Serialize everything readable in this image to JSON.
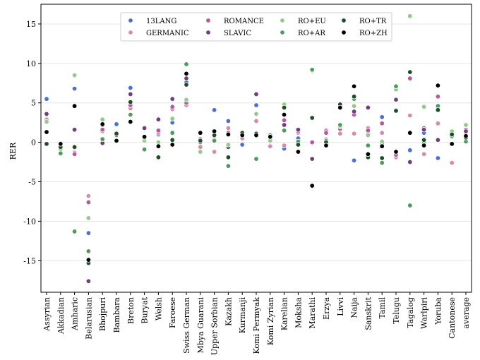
{
  "chart_data": {
    "type": "scatter",
    "title": "",
    "xlabel": "",
    "ylabel": "RER",
    "ylim": [
      -19,
      17.5
    ],
    "yticks": [
      -15,
      -10,
      -5,
      0,
      5,
      10,
      15
    ],
    "grid": "horizontal",
    "legend_position": "top-center",
    "categories": [
      "Assyrian",
      "Akkadian",
      "Amharic",
      "Belarusian",
      "Bhojpuri",
      "Bambara",
      "Breton",
      "Buryat",
      "Welsh",
      "Faroese",
      "Swiss German",
      "Mbya Guarani",
      "Upper Sorbian",
      "Kazakh",
      "Kurmanji",
      "Komi Permyak",
      "Komi Zyrian",
      "Karelian",
      "Moksha",
      "Marathi",
      "Erzya",
      "Livvi",
      "Naija",
      "Sanskrit",
      "Tamil",
      "Telugu",
      "Tagalog",
      "Warlpiri",
      "Yoruba",
      "Cantonese",
      "average"
    ],
    "series": [
      {
        "name": "13LANG",
        "color": "#4a6fd6",
        "values": [
          5.5,
          -0.1,
          6.8,
          -11.5,
          1.6,
          2.3,
          6.9,
          0.5,
          1.0,
          2.5,
          7.6,
          0.2,
          4.1,
          2.7,
          -0.3,
          4.7,
          0.4,
          -0.8,
          0.5,
          9.0,
          0.3,
          4.4,
          -2.3,
          1.1,
          3.2,
          6.9,
          -1.0,
          1.2,
          -2.0,
          0.8,
          1.5
        ]
      },
      {
        "name": "GERMANIC",
        "color": "#d98aa8",
        "values": [
          2.9,
          -0.4,
          -1.3,
          -6.8,
          1.4,
          1.0,
          4.3,
          0.4,
          1.2,
          4.2,
          4.7,
          -0.6,
          -1.2,
          1.8,
          0.5,
          2.7,
          -0.5,
          -0.4,
          1.2,
          -0.1,
          1.5,
          1.1,
          1.1,
          1.8,
          1.2,
          -1.9,
          3.4,
          -1.5,
          2.4,
          -2.6,
          1.2
        ]
      },
      {
        "name": "ROMANCE",
        "color": "#b5599a",
        "values": [
          3.5,
          -0.5,
          -1.5,
          -7.6,
          1.6,
          0.9,
          4.7,
          0.6,
          1.5,
          4.5,
          5.0,
          0.4,
          1.0,
          1.2,
          0.9,
          3.6,
          0.1,
          2.8,
          1.4,
          0.0,
          1.2,
          1.7,
          3.5,
          1.5,
          2.4,
          -1.6,
          8.1,
          1.8,
          5.8,
          0.7,
          1.6
        ]
      },
      {
        "name": "SLAVIC",
        "color": "#6e3f7d",
        "values": [
          3.6,
          -0.6,
          1.6,
          -17.6,
          -0.1,
          1.2,
          6.1,
          1.8,
          2.9,
          5.5,
          8.1,
          0.1,
          0.4,
          -0.6,
          1.1,
          6.1,
          0.3,
          2.2,
          1.6,
          -2.1,
          0.4,
          2.2,
          3.9,
          4.4,
          -0.2,
          5.4,
          -2.5,
          1.6,
          0.3,
          0.9,
          1.4
        ]
      },
      {
        "name": "RO+EU",
        "color": "#94c98b",
        "values": [
          2.6,
          -0.9,
          8.5,
          -9.6,
          2.9,
          1.1,
          3.5,
          0.2,
          0.0,
          3.0,
          5.4,
          -1.2,
          0.4,
          -0.3,
          1.2,
          3.6,
          0.2,
          4.8,
          0.0,
          9.1,
          0.4,
          2.0,
          4.6,
          0.9,
          0.1,
          6.7,
          16.0,
          4.5,
          4.5,
          1.4,
          2.2
        ]
      },
      {
        "name": "RO+AR",
        "color": "#4f9a5c",
        "values": [
          -0.2,
          -1.4,
          -11.3,
          -13.8,
          0.4,
          1.1,
          3.5,
          -0.9,
          -1.9,
          1.2,
          9.9,
          0.0,
          0.2,
          -3.0,
          1.0,
          -2.1,
          0.9,
          1.5,
          0.1,
          9.2,
          0.2,
          2.2,
          5.5,
          -0.4,
          -2.6,
          7.1,
          -8.0,
          -0.1,
          4.6,
          0.8,
          0.1
        ]
      },
      {
        "name": "RO+TR",
        "color": "#1d4d26",
        "values": [
          -0.2,
          -0.6,
          -0.6,
          -15.3,
          2.2,
          1.1,
          5.1,
          0.6,
          -1.9,
          0.3,
          7.3,
          0.2,
          0.9,
          -1.9,
          1.2,
          1.1,
          0.7,
          4.4,
          -0.3,
          3.1,
          0.0,
          4.8,
          5.8,
          -1.9,
          -2.0,
          4.0,
          8.9,
          0.3,
          4.1,
          1.0,
          0.6
        ]
      },
      {
        "name": "RO+ZH",
        "color": "#000000",
        "values": [
          1.3,
          -0.2,
          4.6,
          -14.9,
          2.3,
          0.2,
          2.6,
          0.7,
          -0.5,
          -0.3,
          8.7,
          1.2,
          1.4,
          1.0,
          0.9,
          0.9,
          0.7,
          3.5,
          -1.2,
          -5.5,
          -0.4,
          4.4,
          7.1,
          -1.5,
          -0.5,
          -1.2,
          1.2,
          -0.4,
          7.2,
          -0.2,
          0.8
        ]
      }
    ]
  }
}
